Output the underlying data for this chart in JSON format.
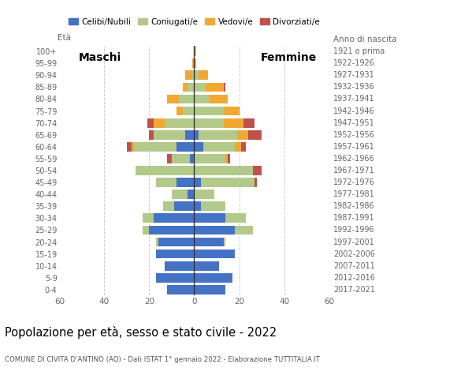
{
  "title": "Popolazione per età, sesso e stato civile - 2022",
  "subtitle": "COMUNE DI CIVITA D'ANTINO (AQ) - Dati ISTAT 1° gennaio 2022 - Elaborazione TUTTITALIA.IT",
  "age_groups": [
    "0-4",
    "5-9",
    "10-14",
    "15-19",
    "20-24",
    "25-29",
    "30-34",
    "35-39",
    "40-44",
    "45-49",
    "50-54",
    "55-59",
    "60-64",
    "65-69",
    "70-74",
    "75-79",
    "80-84",
    "85-89",
    "90-94",
    "95-99",
    "100+"
  ],
  "birth_years": [
    "2017-2021",
    "2012-2016",
    "2007-2011",
    "2002-2006",
    "1997-2001",
    "1992-1996",
    "1987-1991",
    "1982-1986",
    "1977-1981",
    "1972-1976",
    "1967-1971",
    "1962-1966",
    "1957-1961",
    "1952-1956",
    "1947-1951",
    "1942-1946",
    "1937-1941",
    "1932-1936",
    "1927-1931",
    "1922-1926",
    "1921 o prima"
  ],
  "colors": {
    "celibe": "#4472c4",
    "coniugato": "#b3c98a",
    "vedovo": "#f0a832",
    "divorziato": "#c0504d"
  },
  "maschi": {
    "celibe": [
      12,
      17,
      13,
      17,
      16,
      20,
      18,
      9,
      3,
      8,
      0,
      2,
      8,
      4,
      0,
      0,
      0,
      0,
      0,
      0,
      0
    ],
    "coniugato": [
      0,
      0,
      0,
      0,
      1,
      3,
      5,
      5,
      7,
      9,
      26,
      8,
      19,
      14,
      13,
      5,
      7,
      3,
      1,
      0,
      0
    ],
    "vedovo": [
      0,
      0,
      0,
      0,
      0,
      0,
      0,
      0,
      0,
      0,
      0,
      0,
      1,
      0,
      5,
      3,
      5,
      2,
      3,
      1,
      0
    ],
    "divorziato": [
      0,
      0,
      0,
      0,
      0,
      0,
      0,
      0,
      0,
      0,
      0,
      2,
      2,
      2,
      3,
      0,
      0,
      0,
      0,
      0,
      0
    ]
  },
  "femmine": {
    "celibe": [
      14,
      17,
      11,
      18,
      13,
      18,
      14,
      3,
      0,
      3,
      0,
      0,
      4,
      2,
      0,
      0,
      0,
      0,
      0,
      0,
      0
    ],
    "coniugato": [
      0,
      0,
      0,
      0,
      1,
      8,
      9,
      11,
      9,
      24,
      26,
      14,
      14,
      17,
      13,
      13,
      7,
      5,
      2,
      0,
      0
    ],
    "vedovo": [
      0,
      0,
      0,
      0,
      0,
      0,
      0,
      0,
      0,
      0,
      0,
      1,
      3,
      5,
      9,
      7,
      8,
      8,
      4,
      1,
      1
    ],
    "divorziato": [
      0,
      0,
      0,
      0,
      0,
      0,
      0,
      0,
      0,
      1,
      4,
      1,
      2,
      6,
      5,
      0,
      0,
      1,
      0,
      0,
      0
    ]
  },
  "xlim": 60,
  "xlabel_left": "Maschi",
  "xlabel_right": "Femmine",
  "ylabel_left": "Età",
  "ylabel_right": "Anno di nascita",
  "legend_labels": [
    "Celibi/Nubili",
    "Coniugati/e",
    "Vedovi/e",
    "Divorziati/e"
  ],
  "background_color": "#ffffff",
  "grid_color": "#cccccc"
}
